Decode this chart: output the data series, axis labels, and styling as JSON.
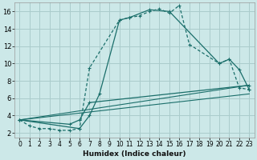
{
  "xlabel": "Humidex (Indice chaleur)",
  "bg_color": "#cce8e8",
  "grid_color": "#aacccc",
  "line_color": "#1a6e6a",
  "xlim": [
    -0.5,
    23.5
  ],
  "ylim": [
    1.5,
    17.0
  ],
  "xticks": [
    0,
    1,
    2,
    3,
    4,
    5,
    6,
    7,
    8,
    9,
    10,
    11,
    12,
    13,
    14,
    15,
    16,
    17,
    18,
    19,
    20,
    21,
    22,
    23
  ],
  "yticks": [
    2,
    4,
    6,
    8,
    10,
    12,
    14,
    16
  ],
  "line1_x": [
    0,
    1,
    2,
    3,
    4,
    5,
    6,
    7,
    10,
    11,
    12,
    13,
    14,
    15,
    16,
    17,
    20,
    21,
    22,
    23
  ],
  "line1_y": [
    3.5,
    2.8,
    2.5,
    2.5,
    2.3,
    2.3,
    2.5,
    9.5,
    15.0,
    15.3,
    15.5,
    16.0,
    16.3,
    15.8,
    16.7,
    12.2,
    10.0,
    10.5,
    7.2,
    7.0
  ],
  "line2_x": [
    0,
    6,
    7,
    8,
    10,
    11,
    13,
    15,
    20,
    21,
    22,
    23
  ],
  "line2_y": [
    3.5,
    2.5,
    4.0,
    6.5,
    15.0,
    15.3,
    16.2,
    16.0,
    10.0,
    10.5,
    9.3,
    7.0
  ],
  "line3_x": [
    0,
    5,
    6,
    7,
    23
  ],
  "line3_y": [
    3.5,
    3.0,
    3.5,
    5.5,
    7.5
  ],
  "line4_x": [
    0,
    23
  ],
  "line4_y": [
    3.5,
    6.5
  ],
  "line5_x": [
    0,
    23
  ],
  "line5_y": [
    3.5,
    7.5
  ]
}
